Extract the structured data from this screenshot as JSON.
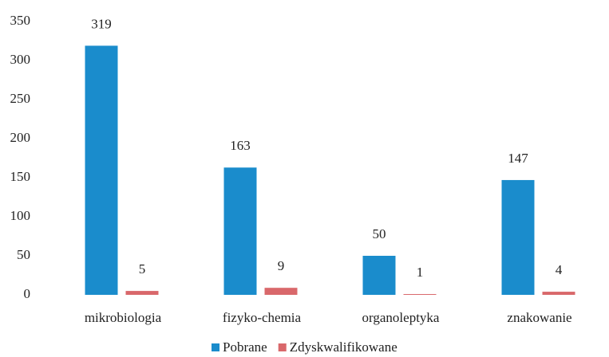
{
  "chart_data": {
    "type": "bar",
    "categories": [
      "mikrobiologia",
      "fizyko-chemia",
      "organoleptyka",
      "znakowanie"
    ],
    "series": [
      {
        "name": "Pobrane",
        "color": "#1a8ccc",
        "values": [
          319,
          163,
          50,
          147
        ]
      },
      {
        "name": "Zdyskwalifikowane",
        "color": "#d9686b",
        "values": [
          5,
          9,
          1,
          4
        ]
      }
    ],
    "ylim": [
      0,
      350
    ],
    "yticks": [
      0,
      50,
      100,
      150,
      200,
      250,
      300,
      350
    ],
    "grid": false,
    "legend": "bottom"
  }
}
